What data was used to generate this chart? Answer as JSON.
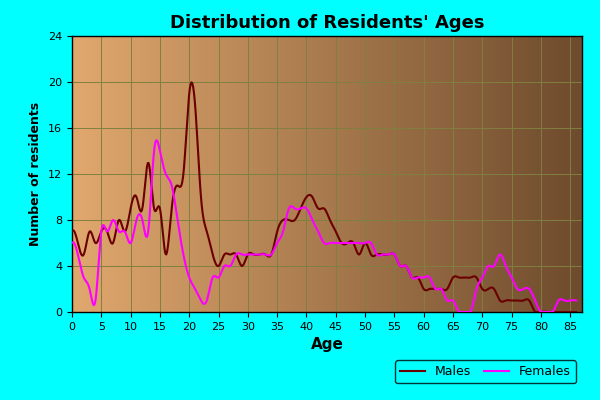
{
  "title": "Distribution of Residents' Ages",
  "xlabel": "Age",
  "ylabel": "Number of residents",
  "background_color": "#00FFFF",
  "male_color": "#6B0000",
  "female_color": "#FF00FF",
  "grid_color": "#808040",
  "xlim": [
    0,
    87
  ],
  "ylim": [
    0,
    24
  ],
  "xticks": [
    0,
    5,
    10,
    15,
    20,
    25,
    30,
    35,
    40,
    45,
    50,
    55,
    60,
    65,
    70,
    75,
    80,
    85
  ],
  "yticks": [
    0,
    4,
    8,
    12,
    16,
    20,
    24
  ],
  "ages": [
    0,
    1,
    2,
    3,
    4,
    5,
    6,
    7,
    8,
    9,
    10,
    11,
    12,
    13,
    14,
    15,
    16,
    17,
    18,
    19,
    20,
    21,
    22,
    23,
    24,
    25,
    26,
    27,
    28,
    29,
    30,
    31,
    32,
    33,
    34,
    35,
    36,
    37,
    38,
    39,
    40,
    41,
    42,
    43,
    44,
    45,
    46,
    47,
    48,
    49,
    50,
    51,
    52,
    53,
    54,
    55,
    56,
    57,
    58,
    59,
    60,
    61,
    62,
    63,
    64,
    65,
    66,
    67,
    68,
    69,
    70,
    71,
    72,
    73,
    74,
    75,
    76,
    77,
    78,
    79,
    80,
    81,
    82,
    83,
    84,
    85,
    86
  ],
  "males": [
    7,
    6,
    5,
    7,
    6,
    7,
    7,
    6,
    8,
    7,
    9,
    10,
    9,
    13,
    9,
    9,
    5,
    9,
    11,
    12,
    19,
    18,
    10,
    7,
    5,
    4,
    5,
    5,
    5,
    4,
    5,
    5,
    5,
    5,
    5,
    7,
    8,
    8,
    8,
    9,
    10,
    10,
    9,
    9,
    8,
    7,
    6,
    6,
    6,
    5,
    6,
    5,
    5,
    5,
    5,
    5,
    4,
    4,
    3,
    3,
    2,
    2,
    2,
    2,
    2,
    3,
    3,
    3,
    3,
    3,
    2,
    2,
    2,
    1,
    1,
    1,
    1,
    1,
    1,
    0,
    0,
    0,
    0,
    0,
    0,
    0,
    0
  ],
  "females": [
    6,
    5,
    3,
    2,
    1,
    7,
    7,
    8,
    7,
    7,
    6,
    8,
    8,
    7,
    14,
    14,
    12,
    11,
    8,
    5,
    3,
    2,
    1,
    1,
    3,
    3,
    4,
    4,
    5,
    5,
    5,
    5,
    5,
    5,
    5,
    6,
    7,
    9,
    9,
    9,
    9,
    8,
    7,
    6,
    6,
    6,
    6,
    6,
    6,
    6,
    6,
    6,
    5,
    5,
    5,
    5,
    4,
    4,
    3,
    3,
    3,
    3,
    2,
    2,
    1,
    1,
    0,
    0,
    0,
    2,
    3,
    4,
    4,
    5,
    4,
    3,
    2,
    2,
    2,
    1,
    0,
    0,
    0,
    1,
    1,
    1,
    1
  ],
  "legend_facecolor": "#00FFFF",
  "legend_edgecolor": "#000000"
}
